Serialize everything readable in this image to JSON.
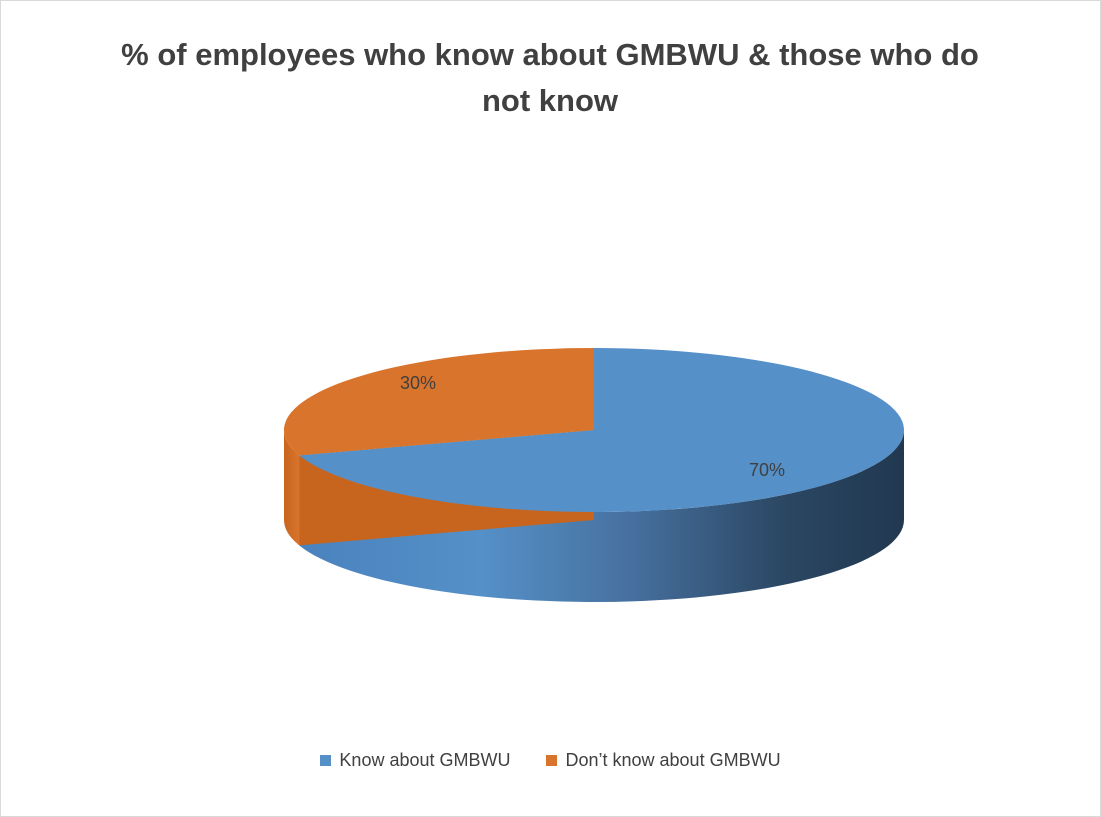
{
  "chart_data": {
    "type": "pie",
    "title": "% of employees who know about GMBWU & those who do not know",
    "slices": [
      {
        "label": "Know about GMBWU",
        "value": 70,
        "data_label": "70%",
        "color": "#5590c8"
      },
      {
        "label": "Don’t know about GMBWU",
        "value": 30,
        "data_label": "30%",
        "color": "#d9742c"
      }
    ],
    "style": "3d",
    "legend_position": "bottom",
    "unit": "%"
  }
}
